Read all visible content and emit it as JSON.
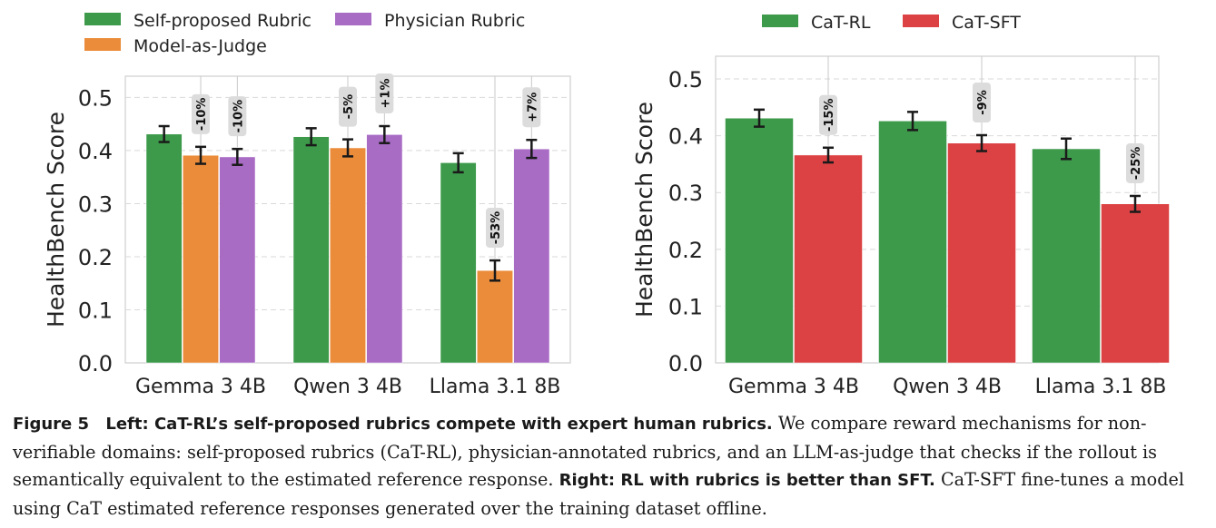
{
  "chart_data": [
    {
      "type": "bar",
      "ylabel": "HealthBench Score",
      "ylim": [
        0,
        0.54
      ],
      "yticks": [
        "0.0",
        "0.1",
        "0.2",
        "0.3",
        "0.4",
        "0.5"
      ],
      "categories": [
        "Gemma 3 4B",
        "Qwen 3 4B",
        "Llama 3.1 8B"
      ],
      "legend_position": "top",
      "grid": true,
      "series": [
        {
          "name": "Self-proposed Rubric",
          "color": "#3d9a4b",
          "values": [
            0.431,
            0.426,
            0.377
          ],
          "errors": [
            0.015,
            0.016,
            0.018
          ]
        },
        {
          "name": "Model-as-Judge",
          "color": "#ea8c3a",
          "values": [
            0.391,
            0.405,
            0.174
          ],
          "errors": [
            0.016,
            0.016,
            0.019
          ]
        },
        {
          "name": "Physician Rubric",
          "color": "#a86cc5",
          "values": [
            0.388,
            0.43,
            0.403
          ],
          "errors": [
            0.015,
            0.016,
            0.017
          ]
        }
      ],
      "annotations": [
        [
          "-10%",
          "-10%"
        ],
        [
          "-5%",
          "+1%"
        ],
        [
          "-53%",
          "+7%"
        ]
      ]
    },
    {
      "type": "bar",
      "ylabel": "HealthBench Score",
      "ylim": [
        0,
        0.54
      ],
      "yticks": [
        "0.0",
        "0.1",
        "0.2",
        "0.3",
        "0.4",
        "0.5"
      ],
      "categories": [
        "Gemma 3 4B",
        "Qwen 3 4B",
        "Llama 3.1 8B"
      ],
      "legend_position": "top",
      "grid": true,
      "series": [
        {
          "name": "CaT-RL",
          "color": "#3d9a4b",
          "values": [
            0.431,
            0.426,
            0.377
          ],
          "errors": [
            0.015,
            0.016,
            0.018
          ]
        },
        {
          "name": "CaT-SFT",
          "color": "#dc4244",
          "values": [
            0.366,
            0.387,
            0.28
          ],
          "errors": [
            0.013,
            0.014,
            0.014
          ]
        }
      ],
      "annotations": [
        [
          "-15%"
        ],
        [
          "-9%"
        ],
        [
          "-25%"
        ]
      ]
    }
  ],
  "caption": {
    "figure_label": "Figure 5",
    "left_title": "Left: CaT-RL’s self-proposed rubrics compete with expert human rubrics.",
    "left_text": "We compare reward mechanisms for non-verifiable domains: self-proposed rubrics (CaT-RL), physician-annotated rubrics, and an LLM-as-judge that checks if the rollout is semantically equivalent to the estimated reference response.",
    "right_title": "Right: RL with rubrics is better than SFT.",
    "right_text": "CaT-SFT fine-tunes a model using CaT estimated reference responses generated over the training dataset offline."
  }
}
